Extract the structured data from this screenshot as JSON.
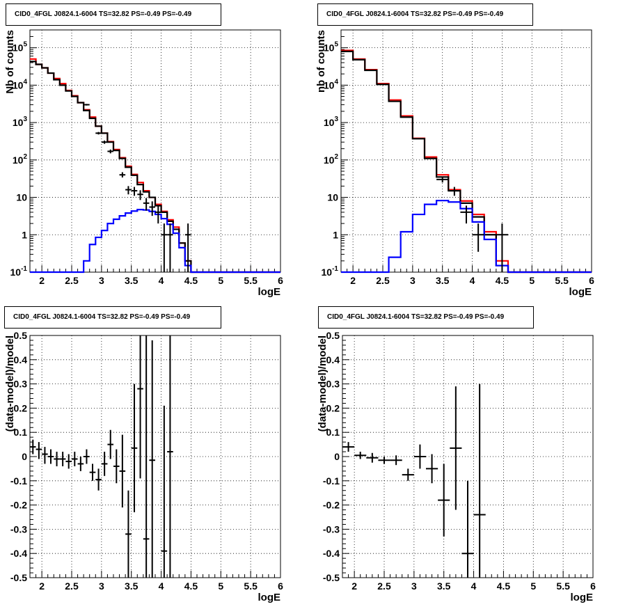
{
  "chart_data": [
    {
      "type": "histogram",
      "title": "CID0_4FGL J0824.1-6004 TS=32.82 PS=-0.49 PS=-0.49",
      "xlabel": "logE",
      "ylabel": "Nb of counts",
      "xlim": [
        1.8,
        6.0
      ],
      "ylim": [
        0.1,
        300000
      ],
      "ylog": true,
      "grid": true,
      "x_ticks": [
        "2",
        "2.5",
        "3",
        "3.5",
        "4",
        "4.5",
        "5",
        "5.5",
        "6"
      ],
      "y_ticks": [
        "10^-1",
        "1",
        "10",
        "10^2",
        "10^3",
        "10^4",
        "10^5"
      ],
      "bin_edges": [
        1.8,
        1.9,
        2.0,
        2.1,
        2.2,
        2.3,
        2.4,
        2.5,
        2.6,
        2.7,
        2.8,
        2.9,
        3.0,
        3.1,
        3.2,
        3.3,
        3.4,
        3.5,
        3.6,
        3.7,
        3.8,
        3.9,
        4.0,
        4.1,
        4.2,
        4.3,
        4.4,
        4.5,
        4.6,
        4.7,
        4.8,
        4.9,
        5.0,
        5.1,
        5.2,
        5.3,
        5.4,
        5.5,
        5.6,
        5.7,
        5.8,
        5.9,
        6.0
      ],
      "series": [
        {
          "color": "#ff0000",
          "style": "step",
          "values": [
            50000,
            36000,
            29000,
            21000,
            15000,
            11000,
            7200,
            5200,
            3400,
            2200,
            1400,
            800,
            520,
            310,
            190,
            115,
            68,
            41,
            25,
            15,
            10,
            6.5,
            4.2,
            2.5,
            1.6,
            0.6,
            0.2,
            0.1,
            0.1,
            0.1,
            0.1,
            0.1,
            0.1,
            0.1,
            0.1,
            0.1,
            0.1,
            0.1,
            0.1,
            0.1,
            0.1,
            0.1
          ]
        },
        {
          "color": "#000000",
          "style": "step",
          "values": [
            43000,
            36000,
            29000,
            21000,
            14000,
            10000,
            7000,
            5000,
            3400,
            2100,
            1300,
            800,
            520,
            300,
            180,
            110,
            64,
            39,
            22,
            14,
            10,
            6.0,
            4.0,
            2.3,
            1.4,
            0.6,
            0.2,
            0.1,
            0.1,
            0.1,
            0.1,
            0.1,
            0.1,
            0.1,
            0.1,
            0.1,
            0.1,
            0.1,
            0.1,
            0.1,
            0.1,
            0.1
          ]
        },
        {
          "color": "#0000ff",
          "style": "step",
          "values": [
            0.1,
            0.1,
            0.1,
            0.1,
            0.1,
            0.1,
            0.1,
            0.1,
            0.1,
            0.2,
            0.55,
            0.85,
            1.3,
            2.0,
            2.6,
            3.2,
            3.8,
            4.3,
            4.7,
            4.6,
            4.2,
            3.5,
            2.7,
            1.9,
            1.1,
            0.45,
            0.15,
            0.1,
            0.1,
            0.1,
            0.1,
            0.1,
            0.1,
            0.1,
            0.1,
            0.1,
            0.1,
            0.1,
            0.1,
            0.1,
            0.1,
            0.1
          ]
        }
      ],
      "data_points": [
        {
          "x": 2.75,
          "y": 3000,
          "dx": 0.05,
          "lo": 2850,
          "hi": 3150
        },
        {
          "x": 2.95,
          "y": 520,
          "dx": 0.05,
          "lo": 480,
          "hi": 560
        },
        {
          "x": 3.05,
          "y": 300,
          "dx": 0.05,
          "lo": 270,
          "hi": 330
        },
        {
          "x": 3.15,
          "y": 170,
          "dx": 0.05,
          "lo": 150,
          "hi": 190
        },
        {
          "x": 3.35,
          "y": 40,
          "dx": 0.05,
          "lo": 34,
          "hi": 47
        },
        {
          "x": 3.45,
          "y": 16,
          "dx": 0.05,
          "lo": 12,
          "hi": 20
        },
        {
          "x": 3.55,
          "y": 15,
          "dx": 0.05,
          "lo": 11,
          "hi": 19
        },
        {
          "x": 3.65,
          "y": 12,
          "dx": 0.05,
          "lo": 8.5,
          "hi": 15.5
        },
        {
          "x": 3.75,
          "y": 7,
          "dx": 0.05,
          "lo": 4.4,
          "hi": 9.6
        },
        {
          "x": 3.85,
          "y": 5.5,
          "dx": 0.05,
          "lo": 3.2,
          "hi": 7.8
        },
        {
          "x": 3.95,
          "y": 4,
          "dx": 0.05,
          "lo": 2.0,
          "hi": 6.0
        },
        {
          "x": 4.05,
          "y": 1,
          "dx": 0.05,
          "lo": 0.1,
          "hi": 2.0
        },
        {
          "x": 4.15,
          "y": 1,
          "dx": 0.05,
          "lo": 0.1,
          "hi": 2.0
        },
        {
          "x": 4.45,
          "y": 1,
          "dx": 0.05,
          "lo": 0.1,
          "hi": 2.0
        }
      ]
    },
    {
      "type": "histogram",
      "title": "CID0_4FGL J0824.1-6004 TS=32.82 PS=-0.49 PS=-0.49",
      "xlabel": "logE",
      "ylabel": "nb of counts",
      "xlim": [
        1.8,
        6.0
      ],
      "ylim": [
        0.1,
        300000
      ],
      "ylog": true,
      "grid": true,
      "x_ticks": [
        "2",
        "2.5",
        "3",
        "3.5",
        "4",
        "4.5",
        "5",
        "5.5",
        "6"
      ],
      "y_ticks": [
        "10^-1",
        "1",
        "10",
        "10^2",
        "10^3",
        "10^4",
        "10^5"
      ],
      "bin_edges": [
        1.8,
        2.0,
        2.2,
        2.4,
        2.6,
        2.8,
        3.0,
        3.2,
        3.4,
        3.6,
        3.8,
        4.0,
        4.2,
        4.4,
        4.6,
        4.8,
        5.0,
        5.2,
        5.4,
        5.6,
        5.8,
        6.0
      ],
      "series": [
        {
          "color": "#ff0000",
          "style": "step",
          "values": [
            85000,
            50000,
            26000,
            11000,
            4000,
            1500,
            380,
            120,
            40,
            16,
            8,
            3.5,
            1.2,
            0.2,
            0.1,
            0.1,
            0.1,
            0.1,
            0.1,
            0.1,
            0.1
          ]
        },
        {
          "color": "#000000",
          "style": "step",
          "values": [
            80000,
            48000,
            25000,
            10500,
            3700,
            1400,
            370,
            110,
            35,
            15,
            7,
            3,
            1.0,
            0.15,
            0.1,
            0.1,
            0.1,
            0.1,
            0.1,
            0.1,
            0.1
          ]
        },
        {
          "color": "#0000ff",
          "style": "step",
          "values": [
            0.1,
            0.1,
            0.1,
            0.1,
            0.25,
            1.2,
            3.5,
            6.5,
            8.2,
            7.5,
            5.0,
            2.2,
            0.75,
            0.15,
            0.1,
            0.1,
            0.1,
            0.1,
            0.1,
            0.1,
            0.1
          ]
        }
      ],
      "data_points": [
        {
          "x": 3.5,
          "y": 30,
          "dx": 0.1,
          "lo": 25,
          "hi": 35
        },
        {
          "x": 3.7,
          "y": 15,
          "dx": 0.1,
          "lo": 11,
          "hi": 19
        },
        {
          "x": 3.9,
          "y": 4,
          "dx": 0.1,
          "lo": 2,
          "hi": 6
        },
        {
          "x": 4.1,
          "y": 1,
          "dx": 0.1,
          "lo": 0.35,
          "hi": 2
        },
        {
          "x": 4.5,
          "y": 1,
          "dx": 0.1,
          "lo": 0.1,
          "hi": 2
        }
      ]
    },
    {
      "type": "scatter",
      "title": "CID0_4FGL J0824.1-6004 TS=32.82 PS=-0.49 PS=-0.49",
      "xlabel": "logE",
      "ylabel": "(data-model)/model",
      "xlim": [
        1.8,
        6.0
      ],
      "ylim": [
        -0.5,
        0.5
      ],
      "ylog": false,
      "grid": true,
      "x_ticks": [
        "2",
        "2.5",
        "3",
        "3.5",
        "4",
        "4.5",
        "5",
        "5.5",
        "6"
      ],
      "y_ticks": [
        "-0.5",
        "-0.4",
        "-0.3",
        "-0.2",
        "-0.1",
        "0",
        "0.1",
        "0.2",
        "0.3",
        "0.4",
        "0.5"
      ],
      "data_points": [
        {
          "x": 1.85,
          "y": 0.04,
          "dx": 0.05,
          "lo": 0.01,
          "hi": 0.07
        },
        {
          "x": 1.95,
          "y": 0.03,
          "dx": 0.05,
          "lo": -0.01,
          "hi": 0.06
        },
        {
          "x": 2.05,
          "y": 0.01,
          "dx": 0.05,
          "lo": -0.03,
          "hi": 0.04
        },
        {
          "x": 2.15,
          "y": 0.0,
          "dx": 0.05,
          "lo": -0.03,
          "hi": 0.03
        },
        {
          "x": 2.25,
          "y": -0.01,
          "dx": 0.05,
          "lo": -0.04,
          "hi": 0.02
        },
        {
          "x": 2.35,
          "y": -0.01,
          "dx": 0.05,
          "lo": -0.04,
          "hi": 0.02
        },
        {
          "x": 2.45,
          "y": -0.02,
          "dx": 0.05,
          "lo": -0.05,
          "hi": 0.01
        },
        {
          "x": 2.55,
          "y": -0.01,
          "dx": 0.05,
          "lo": -0.04,
          "hi": 0.02
        },
        {
          "x": 2.65,
          "y": -0.03,
          "dx": 0.05,
          "lo": -0.06,
          "hi": 0.0
        },
        {
          "x": 2.75,
          "y": 0.0,
          "dx": 0.05,
          "lo": -0.03,
          "hi": 0.03
        },
        {
          "x": 2.85,
          "y": -0.065,
          "dx": 0.05,
          "lo": -0.1,
          "hi": -0.03
        },
        {
          "x": 2.95,
          "y": -0.095,
          "dx": 0.05,
          "lo": -0.14,
          "hi": -0.05
        },
        {
          "x": 3.05,
          "y": -0.03,
          "dx": 0.05,
          "lo": -0.08,
          "hi": 0.02
        },
        {
          "x": 3.15,
          "y": 0.05,
          "dx": 0.05,
          "lo": -0.01,
          "hi": 0.11
        },
        {
          "x": 3.25,
          "y": -0.04,
          "dx": 0.05,
          "lo": -0.11,
          "hi": 0.03
        },
        {
          "x": 3.35,
          "y": -0.06,
          "dx": 0.05,
          "lo": -0.21,
          "hi": 0.09
        },
        {
          "x": 3.45,
          "y": -0.32,
          "dx": 0.05,
          "lo": -0.5,
          "hi": -0.14
        },
        {
          "x": 3.55,
          "y": 0.035,
          "dx": 0.05,
          "lo": -0.23,
          "hi": 0.3
        },
        {
          "x": 3.65,
          "y": 0.28,
          "dx": 0.05,
          "lo": -0.09,
          "hi": 0.5
        },
        {
          "x": 3.75,
          "y": -0.34,
          "dx": 0.05,
          "lo": -0.5,
          "hi": 0.5
        },
        {
          "x": 3.85,
          "y": -0.015,
          "dx": 0.05,
          "lo": -0.5,
          "hi": 0.48
        },
        {
          "x": 4.05,
          "y": -0.39,
          "dx": 0.05,
          "lo": -0.5,
          "hi": 0.21
        },
        {
          "x": 4.15,
          "y": 0.02,
          "dx": 0.05,
          "lo": -0.5,
          "hi": 0.5
        }
      ]
    },
    {
      "type": "scatter",
      "title": "CID0_4FGL J0824.1-6004 TS=32.82 PS=-0.49 PS=-0.49",
      "xlabel": "logE",
      "ylabel": "(data-model)/model",
      "xlim": [
        1.8,
        6.0
      ],
      "ylim": [
        -0.5,
        0.5
      ],
      "ylog": false,
      "grid": true,
      "x_ticks": [
        "2",
        "2.5",
        "3",
        "3.5",
        "4",
        "4.5",
        "5",
        "5.5",
        "6"
      ],
      "y_ticks": [
        "-0.5",
        "-0.4",
        "-0.3",
        "-0.2",
        "-0.1",
        "0",
        "0.1",
        "0.2",
        "0.3",
        "0.4",
        "0.5"
      ],
      "data_points": [
        {
          "x": 1.9,
          "y": 0.04,
          "dx": 0.1,
          "lo": 0.02,
          "hi": 0.06
        },
        {
          "x": 2.1,
          "y": 0.005,
          "dx": 0.1,
          "lo": -0.01,
          "hi": 0.02
        },
        {
          "x": 2.3,
          "y": -0.005,
          "dx": 0.1,
          "lo": -0.025,
          "hi": 0.015
        },
        {
          "x": 2.5,
          "y": -0.015,
          "dx": 0.1,
          "lo": -0.03,
          "hi": 0.0
        },
        {
          "x": 2.7,
          "y": -0.015,
          "dx": 0.1,
          "lo": -0.035,
          "hi": 0.005
        },
        {
          "x": 2.9,
          "y": -0.075,
          "dx": 0.1,
          "lo": -0.1,
          "hi": -0.05
        },
        {
          "x": 3.1,
          "y": 0.0,
          "dx": 0.1,
          "lo": -0.05,
          "hi": 0.05
        },
        {
          "x": 3.3,
          "y": -0.05,
          "dx": 0.1,
          "lo": -0.11,
          "hi": 0.01
        },
        {
          "x": 3.5,
          "y": -0.18,
          "dx": 0.1,
          "lo": -0.33,
          "hi": -0.03
        },
        {
          "x": 3.7,
          "y": 0.035,
          "dx": 0.1,
          "lo": -0.22,
          "hi": 0.29
        },
        {
          "x": 3.9,
          "y": -0.4,
          "dx": 0.1,
          "lo": -0.5,
          "hi": -0.1
        },
        {
          "x": 4.1,
          "y": -0.24,
          "dx": 0.1,
          "lo": -0.5,
          "hi": 0.3
        }
      ]
    }
  ]
}
